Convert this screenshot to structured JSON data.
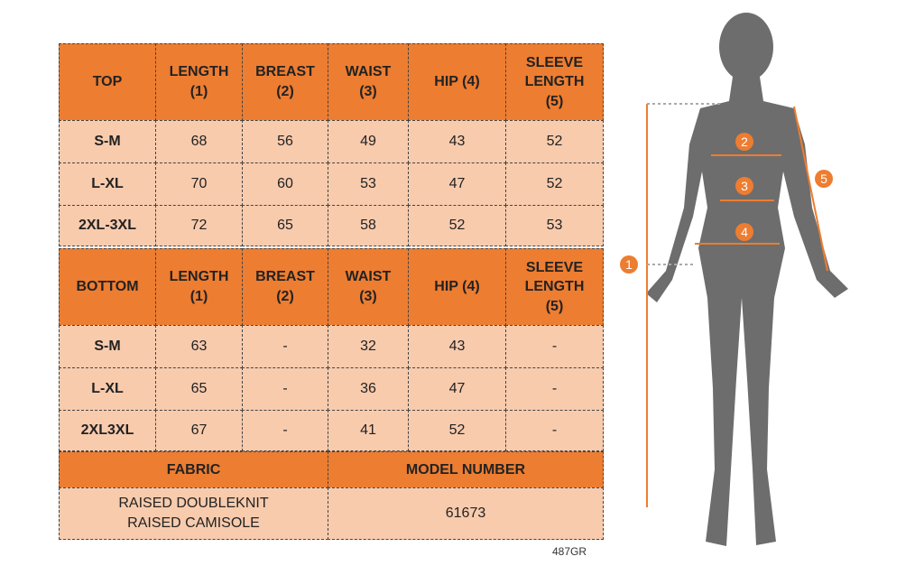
{
  "top": {
    "header": [
      "TOP",
      "LENGTH\n(1)",
      "BREAST\n(2)",
      "WAIST\n(3)",
      "HIP (4)",
      "SLEEVE\nLENGTH\n(5)"
    ],
    "rows": [
      [
        "S-M",
        68,
        56,
        49,
        43,
        52
      ],
      [
        "L-XL",
        70,
        60,
        53,
        47,
        52
      ],
      [
        "2XL-3XL",
        72,
        65,
        58,
        52,
        53
      ]
    ]
  },
  "bottom": {
    "header": [
      "BOTTOM",
      "LENGTH\n(1)",
      "BREAST\n(2)",
      "WAIST\n(3)",
      "HIP (4)",
      "SLEEVE\nLENGTH\n(5)"
    ],
    "rows": [
      [
        "S-M",
        63,
        "-",
        32,
        43,
        "-"
      ],
      [
        "L-XL",
        65,
        "-",
        36,
        47,
        "-"
      ],
      [
        "2XL3XL",
        67,
        "-",
        41,
        52,
        "-"
      ]
    ]
  },
  "fabric": {
    "header": [
      "FABRIC",
      "MODEL NUMBER"
    ],
    "values": [
      "RAISED DOUBLEKNIT\nRAISED CAMISOLE",
      "61673"
    ]
  },
  "figure": {
    "markers": [
      "1",
      "2",
      "3",
      "4",
      "5"
    ]
  },
  "footnote": "487GR"
}
